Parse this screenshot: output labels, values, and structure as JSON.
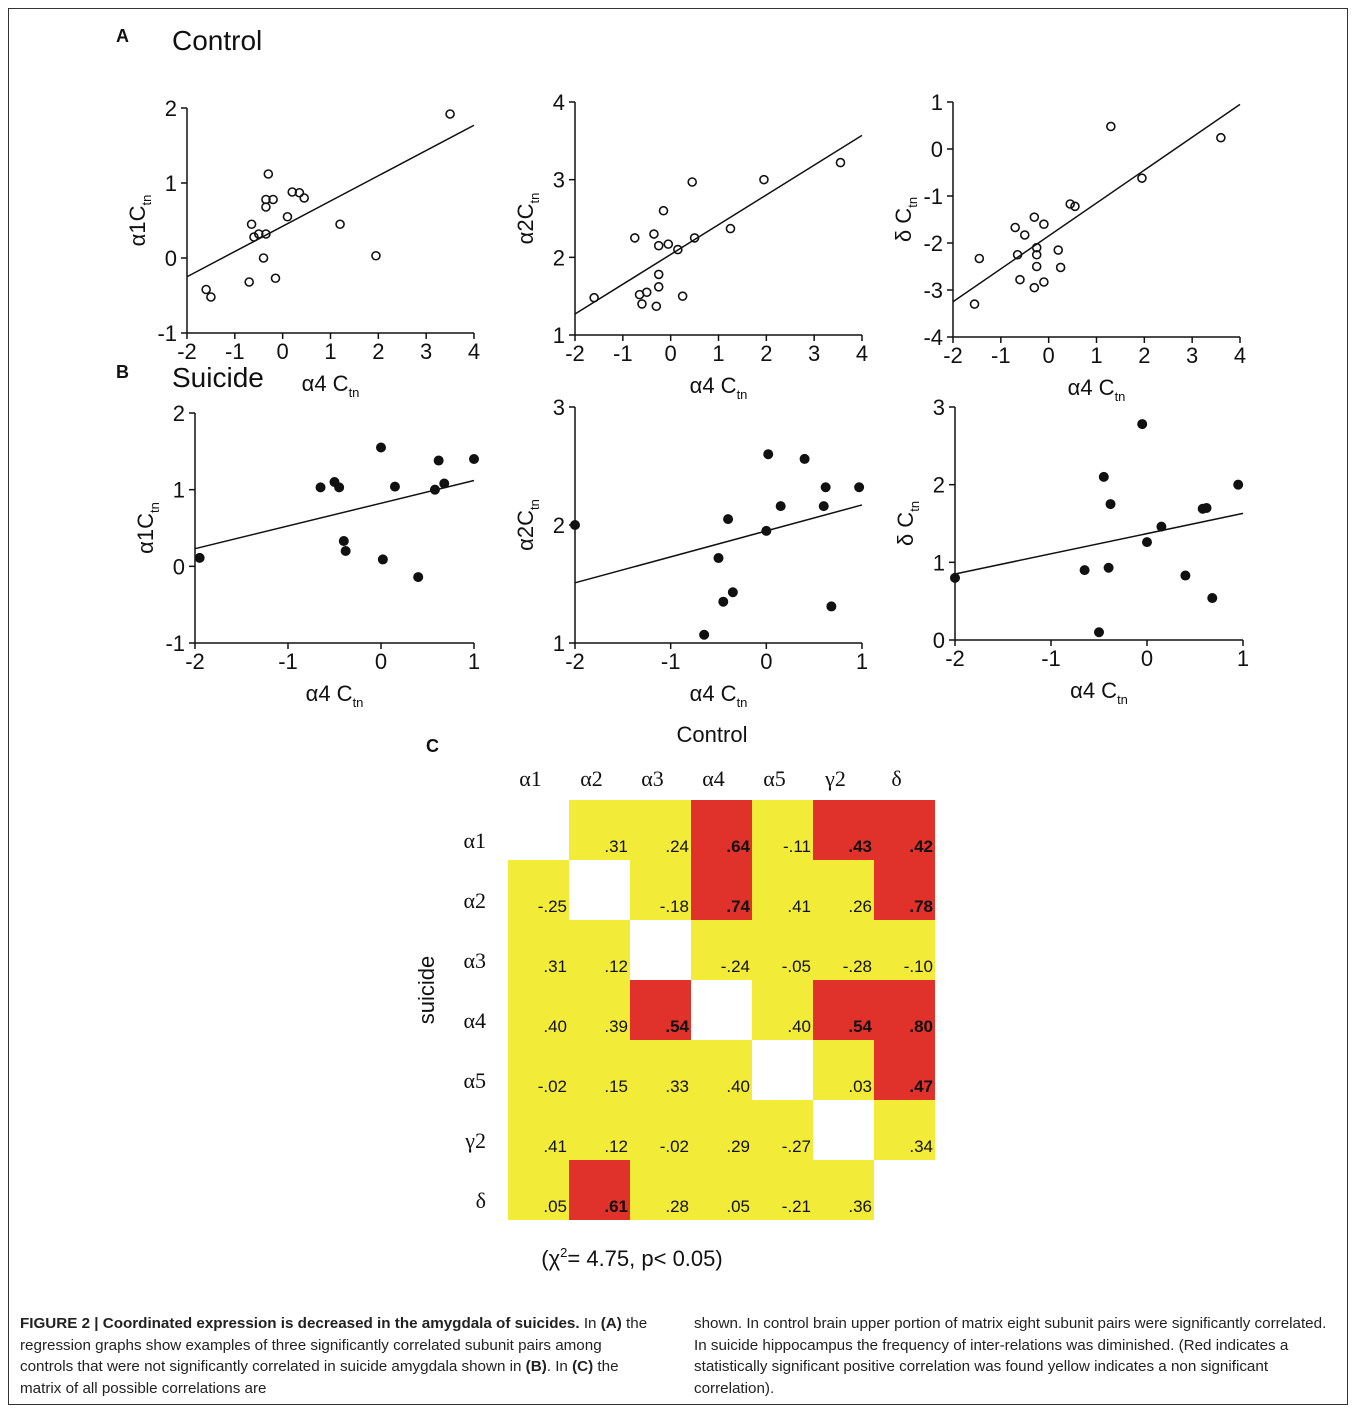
{
  "figure": {
    "panels": [
      {
        "letter": "A",
        "title": "Control"
      },
      {
        "letter": "B",
        "title": "Suicide"
      },
      {
        "letter": "C",
        "title": ""
      }
    ],
    "matrix_top_label": "Control",
    "matrix_side_label": "suicide",
    "stats_note_pre": "(χ",
    "stats_note_sup": "2",
    "stats_note_post": "= 4.75, p< 0.05)"
  },
  "caption": {
    "figure_label": "FIGURE 2 | Coordinated expression is decreased in the amygdala of suicides.",
    "col1_t1": " In ",
    "col1_b1": "(A)",
    "col1_t2": " the regression graphs show examples of three significantly correlated subunit pairs among controls that were not significantly correlated in suicide amygdala shown in ",
    "col1_b2": "(B)",
    "col1_t3": ". In ",
    "col1_b3": "(C)",
    "col1_t4": " the matrix of all possible correlations are",
    "col2": "shown. In control brain upper portion of matrix eight subunit pairs were significantly correlated. In suicide hippocampus the frequency of inter-relations was diminished. (Red indicates a statistically significant positive correlation was found yellow indicates a non significant correlation)."
  },
  "chart_data": [
    {
      "type": "scatter",
      "panel": "A",
      "group": "Control",
      "marker": "open-circle",
      "xlabel": "α4 C",
      "xlabel_sub": "tn",
      "ylabel": "α1C",
      "ylabel_sub": "tn",
      "xlim": [
        -2,
        4
      ],
      "ylim": [
        -1,
        2
      ],
      "xticks": [
        -2,
        -1,
        0,
        1,
        2,
        3,
        4
      ],
      "yticks": [
        -1,
        0,
        1,
        2
      ],
      "fit_line": [
        [
          -2,
          -0.25
        ],
        [
          4,
          1.77
        ]
      ],
      "points": [
        [
          -1.6,
          -0.42
        ],
        [
          -1.5,
          -0.52
        ],
        [
          -0.7,
          -0.32
        ],
        [
          -0.65,
          0.45
        ],
        [
          -0.6,
          0.28
        ],
        [
          -0.5,
          0.32
        ],
        [
          -0.4,
          0.0
        ],
        [
          -0.35,
          0.32
        ],
        [
          -0.35,
          0.78
        ],
        [
          -0.35,
          0.68
        ],
        [
          -0.3,
          1.12
        ],
        [
          -0.2,
          0.78
        ],
        [
          -0.15,
          -0.27
        ],
        [
          0.1,
          0.55
        ],
        [
          0.2,
          0.88
        ],
        [
          0.35,
          0.87
        ],
        [
          0.45,
          0.8
        ],
        [
          1.2,
          0.45
        ],
        [
          1.95,
          0.03
        ],
        [
          3.5,
          1.92
        ]
      ]
    },
    {
      "type": "scatter",
      "panel": "A",
      "group": "Control",
      "marker": "open-circle",
      "xlabel": "α4 C",
      "xlabel_sub": "tn",
      "ylabel": "α2C",
      "ylabel_sub": "tn",
      "xlim": [
        -2,
        4
      ],
      "ylim": [
        1,
        4
      ],
      "xticks": [
        -2,
        -1,
        0,
        1,
        2,
        3,
        4
      ],
      "yticks": [
        1,
        2,
        3,
        4
      ],
      "fit_line": [
        [
          -2,
          1.27
        ],
        [
          4,
          3.57
        ]
      ],
      "points": [
        [
          -1.6,
          1.48
        ],
        [
          -0.75,
          2.25
        ],
        [
          -0.65,
          1.52
        ],
        [
          -0.6,
          1.4
        ],
        [
          -0.5,
          1.55
        ],
        [
          -0.35,
          2.3
        ],
        [
          -0.3,
          1.37
        ],
        [
          -0.25,
          1.62
        ],
        [
          -0.25,
          2.15
        ],
        [
          -0.25,
          1.78
        ],
        [
          -0.15,
          2.6
        ],
        [
          -0.05,
          2.17
        ],
        [
          0.15,
          2.1
        ],
        [
          0.25,
          1.5
        ],
        [
          0.45,
          2.97
        ],
        [
          0.5,
          2.25
        ],
        [
          1.25,
          2.37
        ],
        [
          1.95,
          3.0
        ],
        [
          3.55,
          3.22
        ]
      ]
    },
    {
      "type": "scatter",
      "panel": "A",
      "group": "Control",
      "marker": "open-circle",
      "xlabel": "α4 C",
      "xlabel_sub": "tn",
      "ylabel": "δ C",
      "ylabel_sub": "tn",
      "xlim": [
        -2,
        4
      ],
      "ylim": [
        -4,
        1
      ],
      "xticks": [
        -2,
        -1,
        0,
        1,
        2,
        3,
        4
      ],
      "yticks": [
        -4,
        -3,
        -2,
        -1,
        0,
        1
      ],
      "fit_line": [
        [
          -2,
          -3.25
        ],
        [
          4,
          0.95
        ]
      ],
      "points": [
        [
          -1.55,
          -3.3
        ],
        [
          -1.45,
          -2.33
        ],
        [
          -0.7,
          -1.67
        ],
        [
          -0.65,
          -2.25
        ],
        [
          -0.6,
          -2.78
        ],
        [
          -0.5,
          -1.83
        ],
        [
          -0.3,
          -1.45
        ],
        [
          -0.3,
          -2.95
        ],
        [
          -0.25,
          -2.1
        ],
        [
          -0.25,
          -2.25
        ],
        [
          -0.25,
          -2.5
        ],
        [
          -0.1,
          -1.6
        ],
        [
          -0.1,
          -2.83
        ],
        [
          0.2,
          -2.15
        ],
        [
          0.25,
          -2.52
        ],
        [
          0.45,
          -1.17
        ],
        [
          0.55,
          -1.22
        ],
        [
          1.3,
          0.48
        ],
        [
          1.95,
          -0.62
        ],
        [
          3.6,
          0.24
        ]
      ]
    },
    {
      "type": "scatter",
      "panel": "B",
      "group": "Suicide",
      "marker": "filled-circle",
      "xlabel": "α4 C",
      "xlabel_sub": "tn",
      "ylabel": "α1C",
      "ylabel_sub": "tn",
      "xlim": [
        -2,
        1
      ],
      "ylim": [
        -1,
        2
      ],
      "xticks": [
        -2,
        -1,
        0,
        1
      ],
      "yticks": [
        -1,
        0,
        1,
        2
      ],
      "fit_line": [
        [
          -2,
          0.23
        ],
        [
          1,
          1.12
        ]
      ],
      "points": [
        [
          -1.95,
          0.11
        ],
        [
          -0.65,
          1.03
        ],
        [
          -0.5,
          1.1
        ],
        [
          -0.45,
          1.03
        ],
        [
          -0.4,
          0.33
        ],
        [
          -0.38,
          0.2
        ],
        [
          0.0,
          1.55
        ],
        [
          0.02,
          0.09
        ],
        [
          0.15,
          1.04
        ],
        [
          0.4,
          -0.14
        ],
        [
          0.58,
          1.0
        ],
        [
          0.62,
          1.38
        ],
        [
          0.68,
          1.08
        ],
        [
          1.0,
          1.4
        ]
      ]
    },
    {
      "type": "scatter",
      "panel": "B",
      "group": "Suicide",
      "marker": "filled-circle",
      "xlabel": "α4 C",
      "xlabel_sub": "tn",
      "ylabel": "α2C",
      "ylabel_sub": "tn",
      "xlim": [
        -2,
        1
      ],
      "ylim": [
        1,
        3
      ],
      "xticks": [
        -2,
        -1,
        0,
        1
      ],
      "yticks": [
        1,
        2,
        3
      ],
      "fit_line": [
        [
          -2,
          1.51
        ],
        [
          1,
          2.17
        ]
      ],
      "points": [
        [
          -2.0,
          2.0
        ],
        [
          -0.65,
          1.07
        ],
        [
          -0.5,
          1.72
        ],
        [
          -0.45,
          1.35
        ],
        [
          -0.4,
          2.05
        ],
        [
          -0.35,
          1.43
        ],
        [
          0.0,
          1.95
        ],
        [
          0.02,
          2.6
        ],
        [
          0.15,
          2.16
        ],
        [
          0.4,
          2.56
        ],
        [
          0.6,
          2.16
        ],
        [
          0.62,
          2.32
        ],
        [
          0.68,
          1.31
        ],
        [
          0.97,
          2.32
        ]
      ]
    },
    {
      "type": "scatter",
      "panel": "B",
      "group": "Suicide",
      "marker": "filled-circle",
      "xlabel": "α4 C",
      "xlabel_sub": "tn",
      "ylabel": "δ C",
      "ylabel_sub": "tn",
      "xlim": [
        -2,
        1
      ],
      "ylim": [
        0,
        3
      ],
      "xticks": [
        -2,
        -1,
        0,
        1
      ],
      "yticks": [
        0,
        1,
        2,
        3
      ],
      "fit_line": [
        [
          -2,
          0.85
        ],
        [
          1,
          1.63
        ]
      ],
      "points": [
        [
          -2.0,
          0.8
        ],
        [
          -0.65,
          0.9
        ],
        [
          -0.5,
          0.1
        ],
        [
          -0.45,
          2.1
        ],
        [
          -0.4,
          0.93
        ],
        [
          -0.38,
          1.75
        ],
        [
          -0.05,
          2.78
        ],
        [
          0.0,
          1.26
        ],
        [
          0.15,
          1.46
        ],
        [
          0.4,
          0.83
        ],
        [
          0.58,
          1.69
        ],
        [
          0.62,
          1.7
        ],
        [
          0.68,
          0.54
        ],
        [
          0.95,
          2.0
        ]
      ]
    },
    {
      "type": "heatmap",
      "panel": "C",
      "labels": [
        "α1",
        "α2",
        "α3",
        "α4",
        "α5",
        "γ2",
        "δ"
      ],
      "x_title": "Control",
      "y_title": "suicide",
      "cells": [
        [
          null,
          ".31",
          ".24",
          ".64",
          "-.11",
          ".43",
          ".42"
        ],
        [
          "-.25",
          null,
          "-.18",
          ".74",
          ".41",
          ".26",
          ".78"
        ],
        [
          ".31",
          ".12",
          null,
          "-.24",
          "-.05",
          "-.28",
          "-.10"
        ],
        [
          ".40",
          ".39",
          ".54",
          null,
          ".40",
          ".54",
          ".80"
        ],
        [
          "-.02",
          ".15",
          ".33",
          ".40",
          null,
          ".03",
          ".47"
        ],
        [
          ".41",
          ".12",
          "-.02",
          ".29",
          "-.27",
          null,
          ".34"
        ],
        [
          ".05",
          ".61",
          ".28",
          ".05",
          "-.21",
          ".36",
          null
        ]
      ],
      "significant": [
        [
          false,
          false,
          false,
          true,
          false,
          true,
          true
        ],
        [
          false,
          false,
          false,
          true,
          false,
          false,
          true
        ],
        [
          false,
          false,
          false,
          false,
          false,
          false,
          false
        ],
        [
          false,
          false,
          true,
          false,
          false,
          true,
          true
        ],
        [
          false,
          false,
          false,
          false,
          false,
          false,
          true
        ],
        [
          false,
          false,
          false,
          false,
          false,
          false,
          false
        ],
        [
          false,
          true,
          false,
          false,
          false,
          false,
          false
        ]
      ],
      "colors": {
        "significant": "#e0312b",
        "not_significant": "#f2ec38",
        "diagonal": "#ffffff"
      }
    }
  ]
}
